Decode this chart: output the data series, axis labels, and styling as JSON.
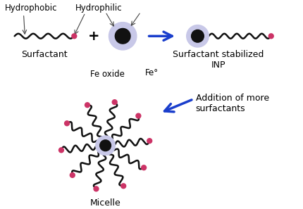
{
  "bg_color": "#ffffff",
  "text_color": "#000000",
  "blue_arrow_color": "#1a3ecc",
  "particle_outer_color": "#c8c8e8",
  "particle_inner_color": "#111111",
  "tail_color": "#111111",
  "head_color": "#cc3366",
  "annotation_color": "#444444",
  "labels": {
    "hydrophobic": "Hydrophobic",
    "hydrophilic": "Hydrophilic",
    "surfactant": "Surfactant",
    "fe_oxide": "Fe oxide",
    "fe0": "Fe°",
    "surfactant_stabilized": "Surfactant stabilized\nINP",
    "addition": "Addition of more\nsurfactants",
    "micelle": "Micelle",
    "plus": "+"
  },
  "fontsize": 8.5,
  "fontsize_label": 9
}
